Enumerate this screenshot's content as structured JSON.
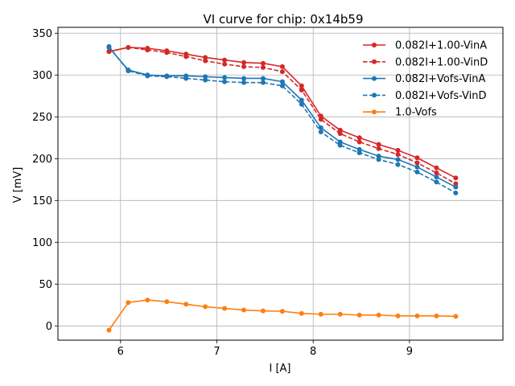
{
  "chart_data": {
    "type": "line",
    "title": "VI curve for chip: 0x14b59",
    "xlabel": "I [A]",
    "ylabel": "V [mV]",
    "xlim": [
      5.35,
      9.97
    ],
    "ylim": [
      -17,
      357
    ],
    "xticks": [
      6,
      7,
      8,
      9
    ],
    "yticks": [
      0,
      50,
      100,
      150,
      200,
      250,
      300,
      350
    ],
    "grid": true,
    "legend_position": "top-right",
    "x": [
      5.88,
      6.08,
      6.28,
      6.48,
      6.68,
      6.88,
      7.08,
      7.28,
      7.48,
      7.68,
      7.88,
      8.08,
      8.28,
      8.48,
      8.68,
      8.88,
      9.08,
      9.28,
      9.48
    ],
    "series": [
      {
        "name": "0.082I+1.00-VinA",
        "color": "#d62728",
        "dashed": false,
        "values": [
          328,
          333,
          332,
          329,
          325,
          321,
          318,
          315,
          314,
          310,
          287,
          251,
          234,
          225,
          217,
          210,
          201,
          189,
          177
        ]
      },
      {
        "name": "0.082I+1.00-VinD",
        "color": "#d62728",
        "dashed": true,
        "values": [
          328,
          333,
          330,
          327,
          322,
          317,
          313,
          310,
          309,
          304,
          282,
          247,
          230,
          220,
          212,
          205,
          195,
          183,
          170
        ]
      },
      {
        "name": "0.082I+Vofs-VinA",
        "color": "#1f77b4",
        "dashed": false,
        "values": [
          333,
          306,
          300,
          299,
          299,
          298,
          297,
          296,
          296,
          292,
          270,
          237,
          220,
          211,
          203,
          199,
          190,
          178,
          166
        ]
      },
      {
        "name": "0.082I+Vofs-VinD",
        "color": "#1f77b4",
        "dashed": true,
        "values": [
          334,
          305,
          299,
          298,
          296,
          294,
          292,
          291,
          291,
          287,
          265,
          232,
          216,
          207,
          199,
          193,
          184,
          172,
          159
        ]
      },
      {
        "name": "1.0-Vofs",
        "color": "#ff7f0e",
        "dashed": false,
        "values": [
          -5,
          28,
          31,
          29,
          26,
          23,
          21,
          19,
          18,
          17.5,
          15,
          14,
          14,
          13,
          13,
          12,
          12,
          12,
          11.5
        ]
      }
    ]
  }
}
